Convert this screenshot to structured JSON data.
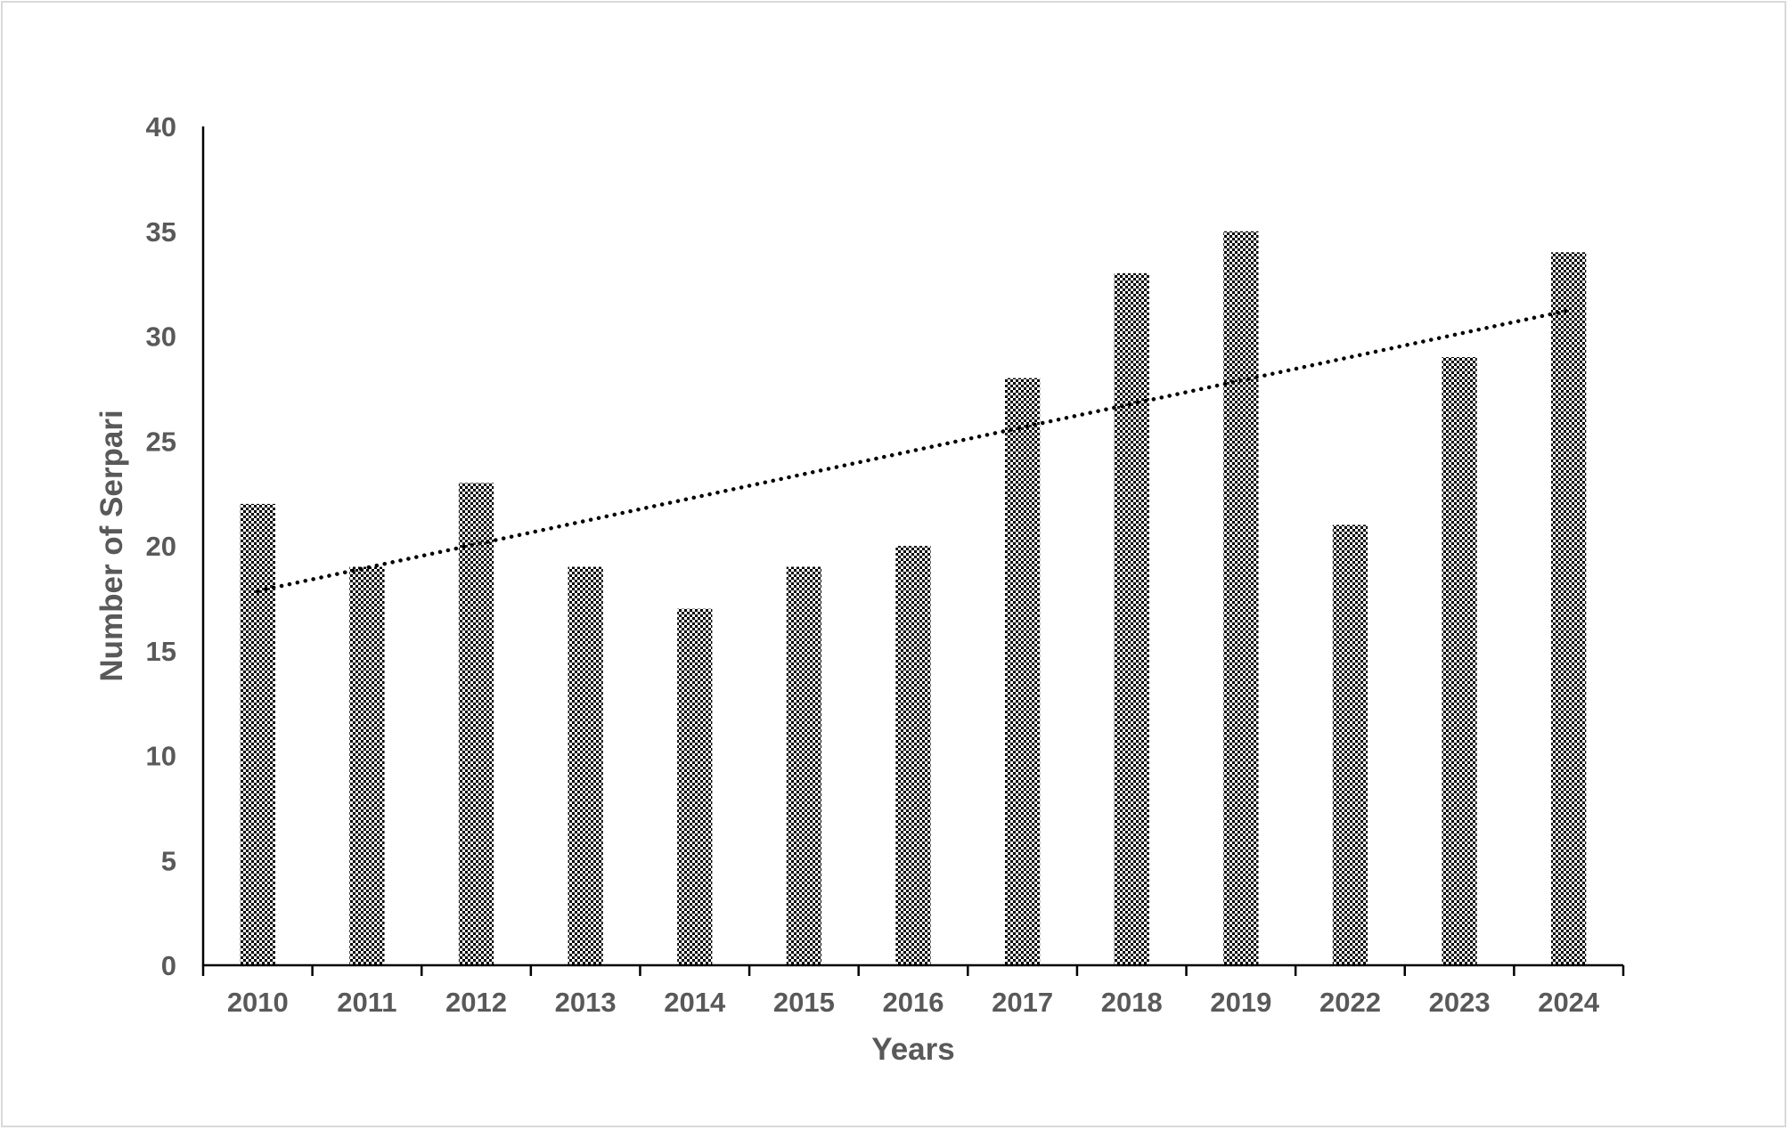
{
  "chart_data": {
    "type": "bar",
    "categories": [
      "2010",
      "2011",
      "2012",
      "2013",
      "2014",
      "2015",
      "2016",
      "2017",
      "2018",
      "2019",
      "2022",
      "2023",
      "2024"
    ],
    "values": [
      22,
      19,
      23,
      19,
      17,
      19,
      20,
      28,
      33,
      35,
      21,
      29,
      34
    ],
    "title": "",
    "xlabel": "Years",
    "ylabel": "Number of Serpari",
    "ylim": [
      0,
      40
    ],
    "yticks": [
      "0",
      "5",
      "10",
      "15",
      "20",
      "25",
      "30",
      "35",
      "40"
    ],
    "trendline": "linear",
    "trendline_style": "dotted",
    "bar_pattern": "checkerboard",
    "grid": false,
    "legend": "none",
    "colors": {
      "bar_dark": "#000000",
      "bar_light": "#ffffff",
      "axis": "#000000",
      "text": "#595959",
      "border": "#d9d9d9"
    }
  }
}
